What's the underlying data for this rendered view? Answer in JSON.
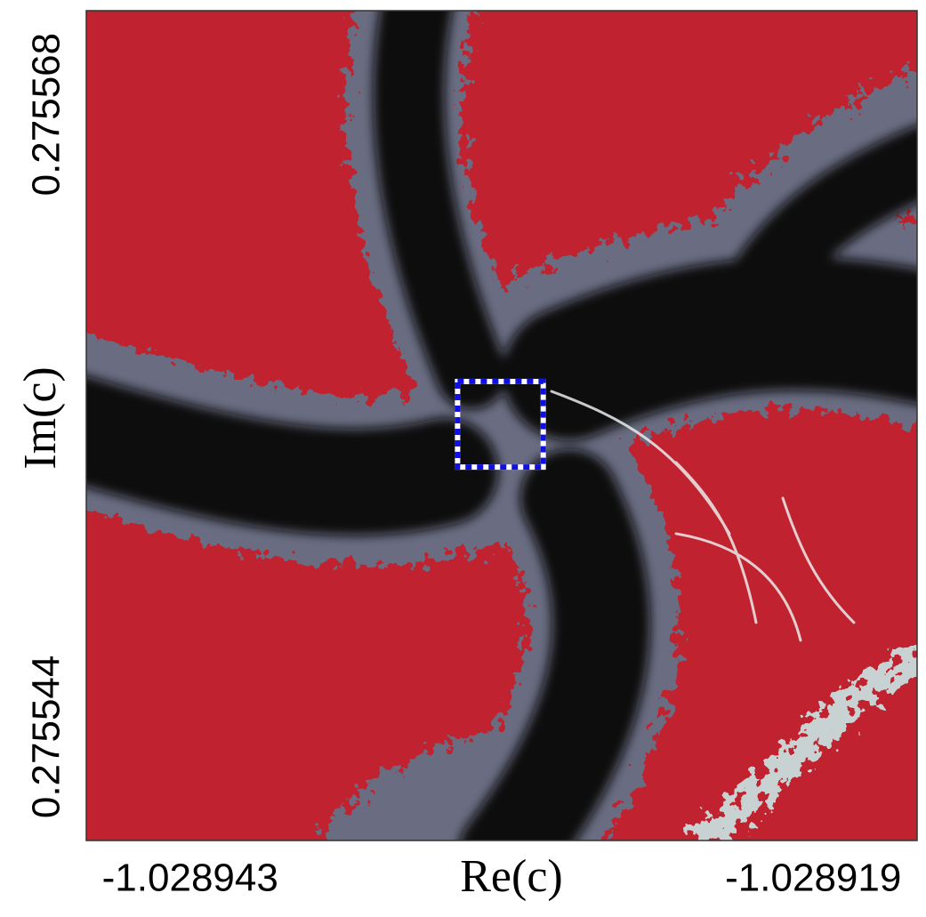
{
  "chart_data": {
    "type": "image",
    "xlabel": "Re(c)",
    "ylabel": "Im(c)",
    "xlim": [
      -1.028947,
      -1.028915
    ],
    "ylim": [
      0.27554,
      0.275572
    ],
    "xticks": [
      -1.028943,
      -1.028919
    ],
    "yticks": [
      0.275544,
      0.275568
    ],
    "background_color": "#c1222f",
    "highlight": {
      "color": "#1010e0",
      "xlim": [
        -1.0289327,
        -1.0289294
      ],
      "ylim": [
        0.2755544,
        0.2755577
      ]
    }
  }
}
